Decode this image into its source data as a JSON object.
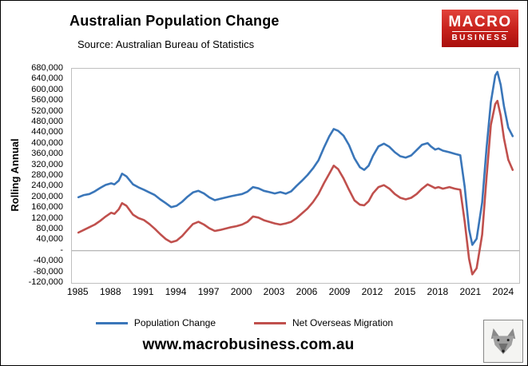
{
  "header": {
    "title": "Australian Population Change",
    "subtitle": "Source: Australian Bureau of Statistics",
    "logo": {
      "line1": "MACRO",
      "line2": "BUSINESS",
      "background": "#c5201a"
    }
  },
  "footer": {
    "website": "www.macrobusiness.com.au"
  },
  "chart_data": {
    "type": "line",
    "title": "Australian Population Change",
    "subtitle": "Source: Australian Bureau of Statistics",
    "xlabel": "",
    "ylabel": "Rolling Annual",
    "ylim": [
      -120000,
      680000
    ],
    "xlim": [
      1984.4,
      2025.4
    ],
    "grid": "zero-line-only",
    "legend_position": "bottom",
    "y_ticks": [
      "680,000",
      "640,000",
      "600,000",
      "560,000",
      "520,000",
      "480,000",
      "440,000",
      "400,000",
      "360,000",
      "320,000",
      "280,000",
      "240,000",
      "200,000",
      "160,000",
      "120,000",
      "80,000",
      "40,000",
      "-",
      "-40,000",
      "-80,000",
      "-120,000"
    ],
    "x_ticks": [
      1985,
      1988,
      1991,
      1994,
      1997,
      2000,
      2003,
      2006,
      2009,
      2012,
      2015,
      2018,
      2021,
      2024
    ],
    "series": [
      {
        "name": "Population Change",
        "color": "#3a76b9",
        "points": [
          [
            1985,
            200000
          ],
          [
            1985.5,
            208000
          ],
          [
            1986,
            212000
          ],
          [
            1986.5,
            222000
          ],
          [
            1987,
            235000
          ],
          [
            1987.5,
            246000
          ],
          [
            1988,
            252000
          ],
          [
            1988.3,
            248000
          ],
          [
            1988.7,
            262000
          ],
          [
            1989,
            288000
          ],
          [
            1989.4,
            278000
          ],
          [
            1990,
            248000
          ],
          [
            1990.5,
            237000
          ],
          [
            1991,
            228000
          ],
          [
            1991.5,
            218000
          ],
          [
            1992,
            208000
          ],
          [
            1992.5,
            192000
          ],
          [
            1993,
            178000
          ],
          [
            1993.5,
            163000
          ],
          [
            1994,
            168000
          ],
          [
            1994.5,
            183000
          ],
          [
            1995,
            202000
          ],
          [
            1995.5,
            218000
          ],
          [
            1996,
            224000
          ],
          [
            1996.5,
            214000
          ],
          [
            1997,
            199000
          ],
          [
            1997.5,
            189000
          ],
          [
            1998,
            194000
          ],
          [
            1998.5,
            199000
          ],
          [
            1999,
            204000
          ],
          [
            1999.5,
            208000
          ],
          [
            2000,
            212000
          ],
          [
            2000.5,
            221000
          ],
          [
            2001,
            238000
          ],
          [
            2001.5,
            233000
          ],
          [
            2002,
            224000
          ],
          [
            2002.5,
            219000
          ],
          [
            2003,
            214000
          ],
          [
            2003.5,
            219000
          ],
          [
            2004,
            213000
          ],
          [
            2004.5,
            222000
          ],
          [
            2005,
            243000
          ],
          [
            2005.5,
            262000
          ],
          [
            2006,
            283000
          ],
          [
            2006.5,
            308000
          ],
          [
            2007,
            338000
          ],
          [
            2007.5,
            385000
          ],
          [
            2008,
            428000
          ],
          [
            2008.4,
            455000
          ],
          [
            2008.8,
            448000
          ],
          [
            2009.3,
            430000
          ],
          [
            2009.8,
            395000
          ],
          [
            2010.3,
            345000
          ],
          [
            2010.8,
            312000
          ],
          [
            2011.2,
            302000
          ],
          [
            2011.6,
            318000
          ],
          [
            2012,
            355000
          ],
          [
            2012.5,
            390000
          ],
          [
            2013,
            400000
          ],
          [
            2013.5,
            388000
          ],
          [
            2014,
            368000
          ],
          [
            2014.5,
            353000
          ],
          [
            2015,
            348000
          ],
          [
            2015.5,
            356000
          ],
          [
            2016,
            376000
          ],
          [
            2016.5,
            396000
          ],
          [
            2017,
            402000
          ],
          [
            2017.3,
            390000
          ],
          [
            2017.7,
            378000
          ],
          [
            2018,
            382000
          ],
          [
            2018.4,
            374000
          ],
          [
            2019,
            368000
          ],
          [
            2019.5,
            362000
          ],
          [
            2020,
            357000
          ],
          [
            2020.4,
            240000
          ],
          [
            2020.8,
            80000
          ],
          [
            2021.1,
            22000
          ],
          [
            2021.5,
            45000
          ],
          [
            2022,
            180000
          ],
          [
            2022.4,
            380000
          ],
          [
            2022.8,
            555000
          ],
          [
            2023.2,
            655000
          ],
          [
            2023.4,
            668000
          ],
          [
            2023.7,
            620000
          ],
          [
            2024,
            540000
          ],
          [
            2024.4,
            460000
          ],
          [
            2024.8,
            428000
          ]
        ]
      },
      {
        "name": "Net Overseas Migration",
        "color": "#c0504d",
        "points": [
          [
            1985,
            68000
          ],
          [
            1985.5,
            78000
          ],
          [
            1986,
            88000
          ],
          [
            1986.5,
            98000
          ],
          [
            1987,
            112000
          ],
          [
            1987.5,
            128000
          ],
          [
            1988,
            142000
          ],
          [
            1988.3,
            138000
          ],
          [
            1988.7,
            155000
          ],
          [
            1989,
            178000
          ],
          [
            1989.4,
            168000
          ],
          [
            1990,
            135000
          ],
          [
            1990.5,
            122000
          ],
          [
            1991,
            115000
          ],
          [
            1991.5,
            100000
          ],
          [
            1992,
            82000
          ],
          [
            1992.5,
            62000
          ],
          [
            1993,
            44000
          ],
          [
            1993.5,
            32000
          ],
          [
            1994,
            38000
          ],
          [
            1994.5,
            55000
          ],
          [
            1995,
            78000
          ],
          [
            1995.5,
            100000
          ],
          [
            1996,
            108000
          ],
          [
            1996.5,
            98000
          ],
          [
            1997,
            84000
          ],
          [
            1997.5,
            74000
          ],
          [
            1998,
            78000
          ],
          [
            1998.5,
            83000
          ],
          [
            1999,
            88000
          ],
          [
            1999.5,
            92000
          ],
          [
            2000,
            98000
          ],
          [
            2000.5,
            108000
          ],
          [
            2001,
            128000
          ],
          [
            2001.5,
            124000
          ],
          [
            2002,
            114000
          ],
          [
            2002.5,
            108000
          ],
          [
            2003,
            102000
          ],
          [
            2003.5,
            98000
          ],
          [
            2004,
            102000
          ],
          [
            2004.5,
            108000
          ],
          [
            2005,
            122000
          ],
          [
            2005.5,
            140000
          ],
          [
            2006,
            158000
          ],
          [
            2006.5,
            182000
          ],
          [
            2007,
            212000
          ],
          [
            2007.5,
            252000
          ],
          [
            2008,
            288000
          ],
          [
            2008.4,
            318000
          ],
          [
            2008.8,
            305000
          ],
          [
            2009.3,
            270000
          ],
          [
            2009.8,
            228000
          ],
          [
            2010.3,
            188000
          ],
          [
            2010.8,
            172000
          ],
          [
            2011.2,
            170000
          ],
          [
            2011.6,
            185000
          ],
          [
            2012,
            215000
          ],
          [
            2012.5,
            238000
          ],
          [
            2013,
            245000
          ],
          [
            2013.5,
            232000
          ],
          [
            2014,
            212000
          ],
          [
            2014.5,
            198000
          ],
          [
            2015,
            192000
          ],
          [
            2015.5,
            198000
          ],
          [
            2016,
            212000
          ],
          [
            2016.5,
            232000
          ],
          [
            2017,
            248000
          ],
          [
            2017.3,
            242000
          ],
          [
            2017.7,
            234000
          ],
          [
            2018,
            238000
          ],
          [
            2018.4,
            232000
          ],
          [
            2019,
            238000
          ],
          [
            2019.5,
            232000
          ],
          [
            2020,
            228000
          ],
          [
            2020.4,
            110000
          ],
          [
            2020.8,
            -30000
          ],
          [
            2021.1,
            -88000
          ],
          [
            2021.5,
            -65000
          ],
          [
            2022,
            60000
          ],
          [
            2022.4,
            270000
          ],
          [
            2022.8,
            470000
          ],
          [
            2023.2,
            548000
          ],
          [
            2023.4,
            560000
          ],
          [
            2023.7,
            505000
          ],
          [
            2024,
            420000
          ],
          [
            2024.4,
            340000
          ],
          [
            2024.8,
            302000
          ]
        ]
      }
    ]
  }
}
